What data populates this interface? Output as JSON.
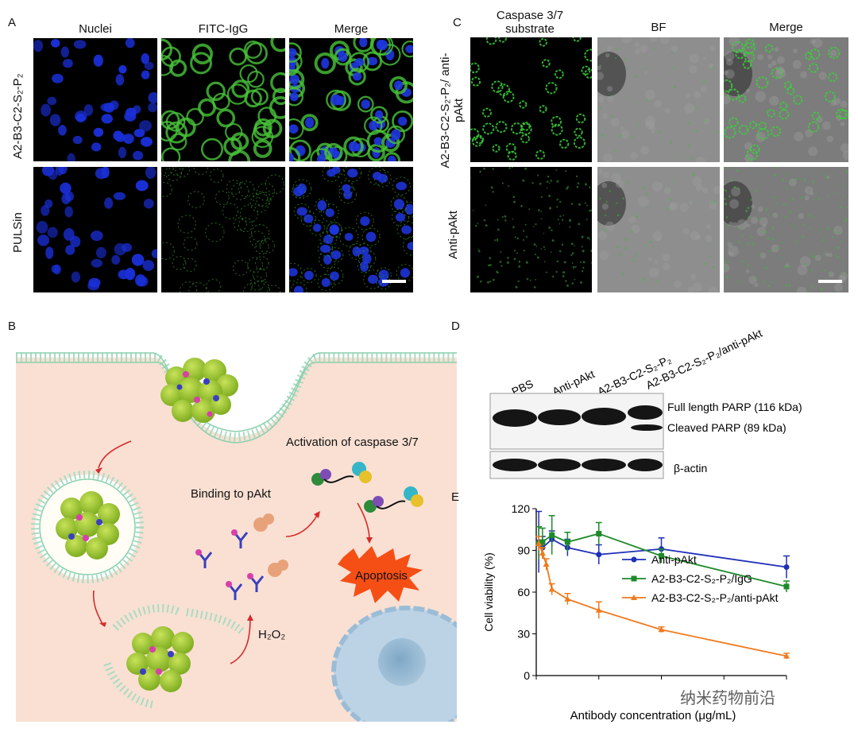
{
  "panelA": {
    "letter": "A",
    "columns": [
      "Nuclei",
      "FITC-IgG",
      "Merge"
    ],
    "rows": [
      "A2-B3-C2-S₂-P₂",
      "PULSin"
    ]
  },
  "panelC": {
    "letter": "C",
    "columns": [
      "Caspase 3/7 substrate",
      "BF",
      "Merge"
    ],
    "rows": [
      "A2-B3-C2-S₂-P₂/ anti-pAkt",
      "Anti-pAkt"
    ]
  },
  "panelB": {
    "letter": "B",
    "labels": {
      "activation": "Activation of caspase 3/7",
      "binding": "Binding to pAkt",
      "apoptosis": "Apoptosis",
      "h2o2": "H₂O₂"
    }
  },
  "panelD": {
    "letter": "D",
    "lanes": [
      "PBS",
      "Anti-pAkt",
      "A2-B3-C2-S₂-P₂",
      "A2-B3-C2-S₂-P₂/anti-pAkt"
    ],
    "bands": [
      "Full length PARP (116 kDa)",
      "Cleaved PARP (89 kDa)",
      "β-actin"
    ]
  },
  "panelE": {
    "letter": "E",
    "watermark": "纳米药物前沿",
    "chart_data": {
      "type": "line",
      "xlabel": "Antibody concentration (μg/mL)",
      "ylabel": "Cell viability (%)",
      "xlim": [
        0,
        20
      ],
      "ylim": [
        0,
        120
      ],
      "yticks": [
        0,
        30,
        60,
        90,
        120
      ],
      "legend_position": "right",
      "series": [
        {
          "name": "Anti-pAkt",
          "color": "#1f2fb8",
          "marker": "circle",
          "x": [
            0.2,
            0.5,
            1.25,
            2.5,
            5,
            10,
            20
          ],
          "y": [
            96,
            92,
            98,
            92,
            87,
            91,
            78
          ],
          "err": [
            22,
            8,
            6,
            6,
            7,
            8,
            8
          ]
        },
        {
          "name": "A2-B3-C2-S₂-P₂/IgG",
          "color": "#1d8a2a",
          "marker": "square",
          "x": [
            0.2,
            0.5,
            1.25,
            2.5,
            5,
            10,
            20
          ],
          "y": [
            95,
            96,
            101,
            96,
            102,
            86,
            64
          ],
          "err": [
            12,
            10,
            14,
            7,
            8,
            5,
            4
          ]
        },
        {
          "name": "A2-B3-C2-S₂-P₂/anti-pAkt",
          "color": "#f07a1e",
          "marker": "triangle",
          "x": [
            0.2,
            0.5,
            0.8,
            1.25,
            2.5,
            5,
            10,
            20
          ],
          "y": [
            95,
            88,
            80,
            62,
            55,
            47,
            33,
            14
          ],
          "err": [
            5,
            4,
            4,
            4,
            4,
            6,
            2,
            2
          ]
        }
      ]
    }
  }
}
